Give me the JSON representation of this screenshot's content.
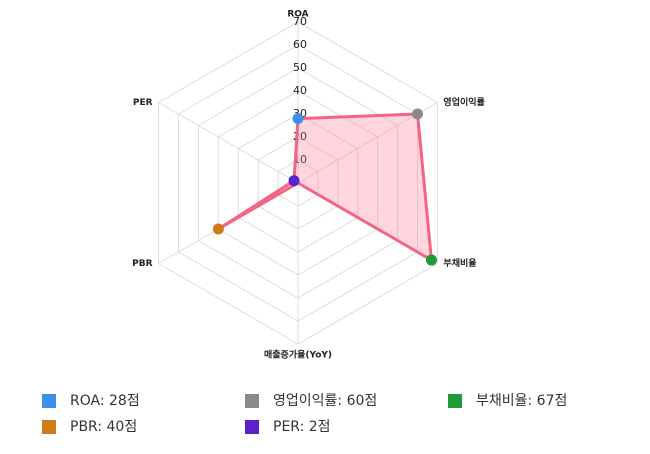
{
  "chart_data": {
    "type": "radar",
    "categories": [
      "ROA",
      "영업이익률",
      "부채비율",
      "매출증가율(YoY)",
      "PBR",
      "PER"
    ],
    "values": [
      28,
      60,
      67,
      0,
      40,
      2
    ],
    "value_labels": [
      "ROA: 28점",
      "영업이익률: 60점",
      "부채비율: 67점",
      null,
      "PBR: 40점",
      "PER: 2점"
    ],
    "point_colors": [
      "#3d8fe8",
      "#8a8a8a",
      "#1f9a3a",
      null,
      "#d07a1e",
      "#5a22c8"
    ],
    "line_color": "#f26585",
    "fill_color": "rgba(255,120,150,0.3)",
    "rlim": [
      0,
      70
    ],
    "rticks": [
      10,
      20,
      30,
      40,
      50,
      60,
      70
    ],
    "grid": true
  }
}
